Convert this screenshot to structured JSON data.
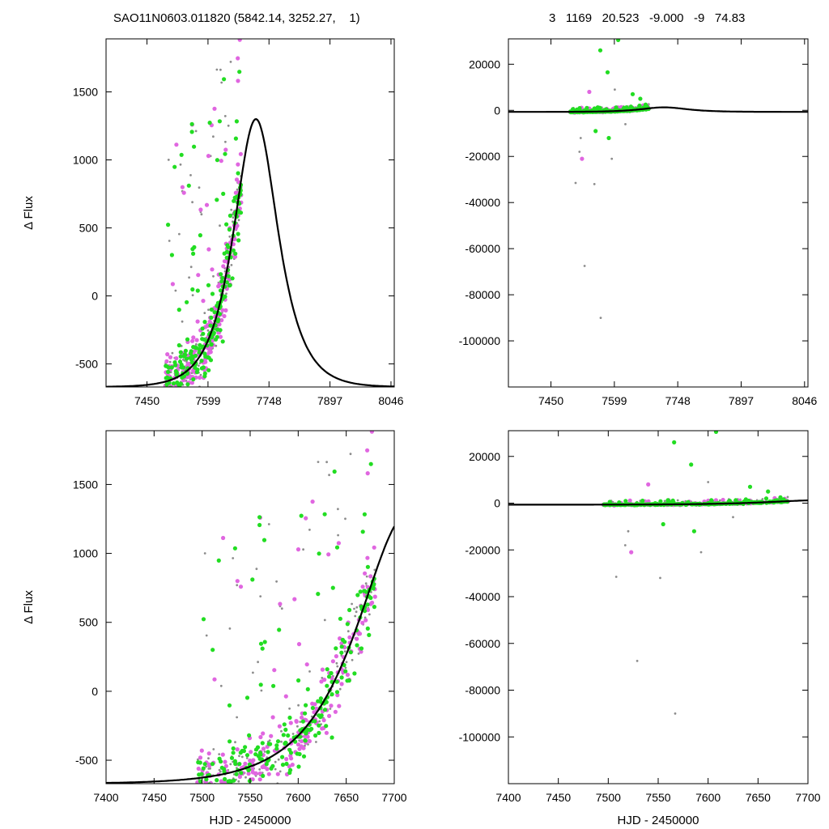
{
  "header": {
    "left_title": "SAO11N0603.011820 (5842.14, 3252.27,    1)",
    "right_title": "3   1169   20.523   -9.000   -9   74.83"
  },
  "chart_data": [
    {
      "panel": "top-left",
      "type": "scatter",
      "ylabel": "Δ Flux",
      "xlabel": "",
      "xlim": [
        7350,
        8054
      ],
      "ylim": [
        -670,
        1890
      ],
      "xticks": [
        "7450",
        "7599",
        "7748",
        "7897",
        "8046"
      ],
      "yticks": [
        "-500",
        "0",
        "500",
        "1000",
        "1500"
      ],
      "model_curve": {
        "t0": 7716,
        "amplitude": 1970,
        "baseline": -670,
        "tau": 48
      },
      "data_window": [
        7495,
        7680
      ]
    },
    {
      "panel": "top-right",
      "type": "scatter",
      "ylabel": "",
      "xlabel": "",
      "xlim": [
        7350,
        8054
      ],
      "ylim": [
        -120000,
        31000
      ],
      "xticks": [
        "7450",
        "7599",
        "7748",
        "7897",
        "8046"
      ],
      "yticks": [
        "-100000",
        "-80000",
        "-60000",
        "-40000",
        "-20000",
        "0",
        "20000"
      ],
      "model_curve": {
        "t0": 7716,
        "amplitude": 1970,
        "baseline": -670,
        "tau": 48
      },
      "data_window": [
        7495,
        7680
      ]
    },
    {
      "panel": "bottom-left",
      "type": "scatter",
      "ylabel": "Δ Flux",
      "xlabel": "HJD - 2450000",
      "xlim": [
        7400,
        7700
      ],
      "ylim": [
        -670,
        1890
      ],
      "xticks": [
        "7400",
        "7450",
        "7500",
        "7550",
        "7600",
        "7650",
        "7700"
      ],
      "yticks": [
        "-500",
        "0",
        "500",
        "1000",
        "1500"
      ],
      "model_curve": {
        "t0": 7716,
        "amplitude": 1970,
        "baseline": -670,
        "tau": 48
      },
      "data_window": [
        7495,
        7680
      ]
    },
    {
      "panel": "bottom-right",
      "type": "scatter",
      "ylabel": "",
      "xlabel": "HJD - 2450000",
      "xlim": [
        7400,
        7700
      ],
      "ylim": [
        -120000,
        31000
      ],
      "xticks": [
        "7400",
        "7450",
        "7500",
        "7550",
        "7600",
        "7650",
        "7700"
      ],
      "yticks": [
        "-100000",
        "-80000",
        "-60000",
        "-40000",
        "-20000",
        "0",
        "20000"
      ],
      "model_curve": {
        "t0": 7716,
        "amplitude": 1970,
        "baseline": -670,
        "tau": 48
      },
      "data_window": [
        7495,
        7680
      ]
    }
  ],
  "colors": {
    "series_green": "#22dd22",
    "series_magenta": "#e066e0",
    "series_gray": "#8c8c8c",
    "model": "#000000"
  }
}
